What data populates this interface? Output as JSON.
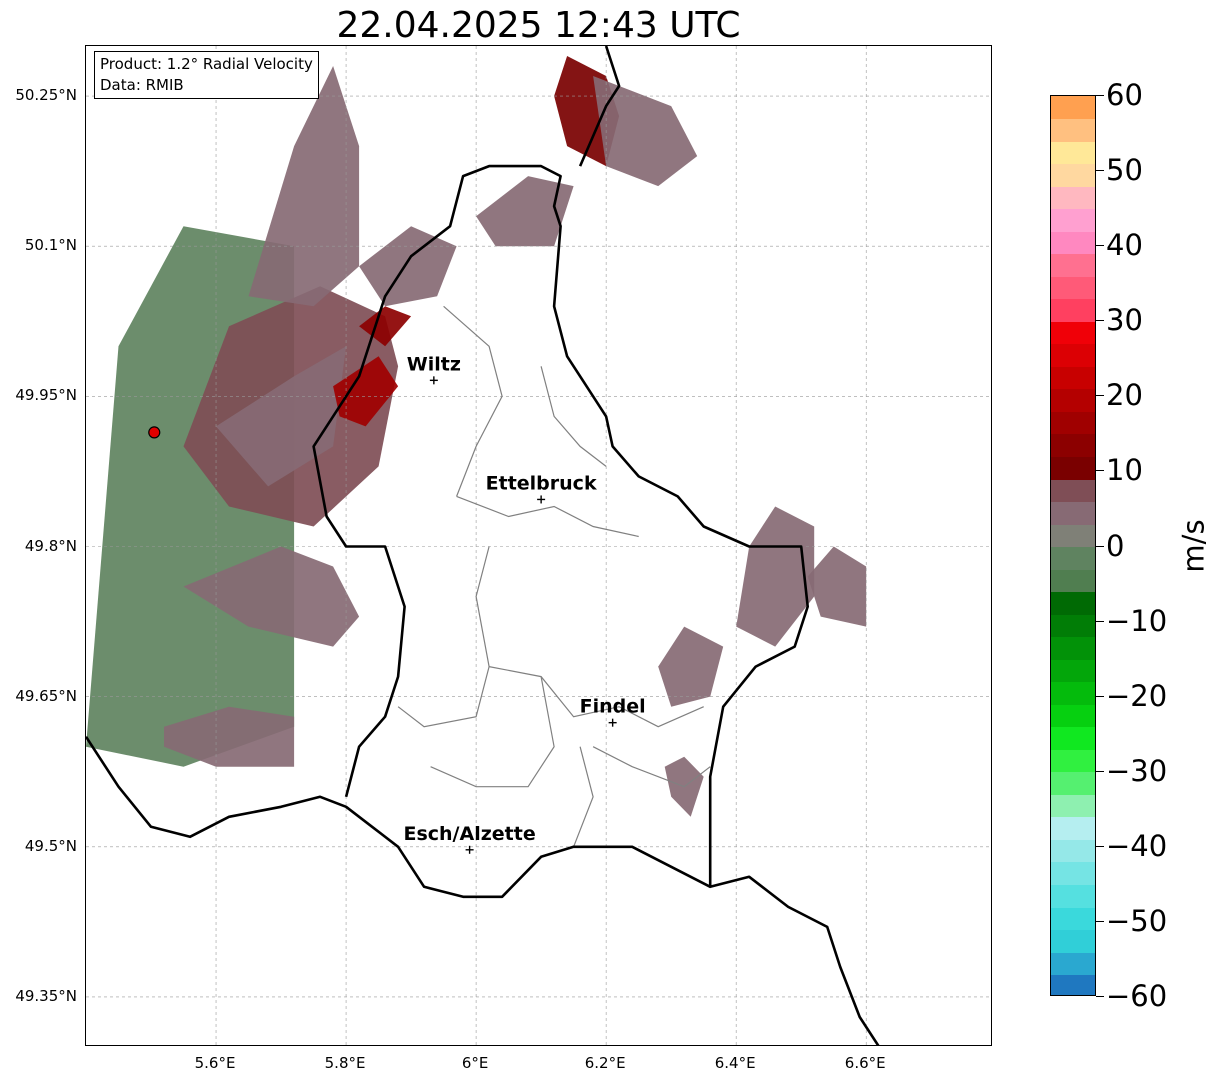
{
  "title": "22.04.2025 12:43 UTC",
  "info": {
    "product": "Product: 1.2° Radial Velocity",
    "data": "Data: RMIB"
  },
  "lat_labels": [
    "50.25°N",
    "50.1°N",
    "49.95°N",
    "49.8°N",
    "49.65°N",
    "49.5°N",
    "49.35°N"
  ],
  "lon_labels": [
    "5.6°E",
    "5.8°E",
    "6°E",
    "6.2°E",
    "6.4°E",
    "6.6°E"
  ],
  "lat_values": [
    50.25,
    50.1,
    49.95,
    49.8,
    49.65,
    49.5,
    49.35
  ],
  "lon_values": [
    5.6,
    5.8,
    6.0,
    6.2,
    6.4,
    6.6
  ],
  "extent": {
    "lon_min": 5.4,
    "lon_max": 6.795,
    "lat_min": 49.3,
    "lat_max": 50.3
  },
  "cities": [
    {
      "name": "Wiltz",
      "lon": 5.935,
      "lat": 49.966
    },
    {
      "name": "Ettelbruck",
      "lon": 6.1,
      "lat": 49.847
    },
    {
      "name": "Findel",
      "lon": 6.21,
      "lat": 49.624
    },
    {
      "name": "Esch/Alzette",
      "lon": 5.99,
      "lat": 49.497
    }
  ],
  "radar_site": {
    "lon": 5.505,
    "lat": 49.914
  },
  "colorbar": {
    "unit": "m/s",
    "min": -60,
    "max": 60,
    "ticks": [
      "60",
      "50",
      "40",
      "30",
      "20",
      "10",
      "0",
      "−10",
      "−20",
      "−30",
      "−40",
      "−50",
      "−60"
    ],
    "tick_values": [
      60,
      50,
      40,
      30,
      20,
      10,
      0,
      -10,
      -20,
      -30,
      -40,
      -50,
      -60
    ],
    "stops": [
      {
        "from": -60,
        "to": -57,
        "color": "#1f78c0"
      },
      {
        "from": -57,
        "to": -54,
        "color": "#2aa8d0"
      },
      {
        "from": -54,
        "to": -51,
        "color": "#30cfd8"
      },
      {
        "from": -51,
        "to": -48,
        "color": "#3ad9dc"
      },
      {
        "from": -48,
        "to": -45,
        "color": "#55e0e0"
      },
      {
        "from": -45,
        "to": -42,
        "color": "#75e4e4"
      },
      {
        "from": -42,
        "to": -39,
        "color": "#95e8e8"
      },
      {
        "from": -39,
        "to": -36,
        "color": "#b5eef0"
      },
      {
        "from": -36,
        "to": -33,
        "color": "#8ef0b0"
      },
      {
        "from": -33,
        "to": -30,
        "color": "#55f070"
      },
      {
        "from": -30,
        "to": -27,
        "color": "#30f040"
      },
      {
        "from": -27,
        "to": -24,
        "color": "#10e820"
      },
      {
        "from": -24,
        "to": -21,
        "color": "#06d010"
      },
      {
        "from": -21,
        "to": -18,
        "color": "#04bb0c"
      },
      {
        "from": -18,
        "to": -15,
        "color": "#03a60a"
      },
      {
        "from": -15,
        "to": -12,
        "color": "#029208"
      },
      {
        "from": -12,
        "to": -9,
        "color": "#017d06"
      },
      {
        "from": -9,
        "to": -6,
        "color": "#006a04"
      },
      {
        "from": -6,
        "to": -3,
        "color": "#507e50"
      },
      {
        "from": -3,
        "to": 0,
        "color": "#5f8360"
      },
      {
        "from": 0,
        "to": 3,
        "color": "#7f8077"
      },
      {
        "from": 3,
        "to": 6,
        "color": "#876a74"
      },
      {
        "from": 6,
        "to": 9,
        "color": "#7f4e56"
      },
      {
        "from": 9,
        "to": 12,
        "color": "#7a0000"
      },
      {
        "from": 12,
        "to": 15,
        "color": "#8c0000"
      },
      {
        "from": 15,
        "to": 18,
        "color": "#a00000"
      },
      {
        "from": 18,
        "to": 21,
        "color": "#b40000"
      },
      {
        "from": 21,
        "to": 24,
        "color": "#c80000"
      },
      {
        "from": 24,
        "to": 27,
        "color": "#dc0004"
      },
      {
        "from": 27,
        "to": 30,
        "color": "#f00008"
      },
      {
        "from": 30,
        "to": 33,
        "color": "#ff4060"
      },
      {
        "from": 33,
        "to": 36,
        "color": "#ff5a78"
      },
      {
        "from": 36,
        "to": 39,
        "color": "#ff7090"
      },
      {
        "from": 39,
        "to": 42,
        "color": "#ff88c0"
      },
      {
        "from": 42,
        "to": 45,
        "color": "#ffa0d0"
      },
      {
        "from": 45,
        "to": 48,
        "color": "#ffb8c0"
      },
      {
        "from": 48,
        "to": 51,
        "color": "#ffd8a0"
      },
      {
        "from": 51,
        "to": 54,
        "color": "#ffe898"
      },
      {
        "from": 54,
        "to": 57,
        "color": "#ffc080"
      },
      {
        "from": 57,
        "to": 60,
        "color": "#ffa050"
      }
    ]
  },
  "echo_regions": [
    {
      "poly": [
        [
          5.4,
          49.6
        ],
        [
          5.45,
          50.0
        ],
        [
          5.55,
          50.12
        ],
        [
          5.72,
          50.1
        ],
        [
          5.72,
          49.62
        ],
        [
          5.55,
          49.58
        ]
      ],
      "color": "#5f8360"
    },
    {
      "poly": [
        [
          5.55,
          49.9
        ],
        [
          5.62,
          50.02
        ],
        [
          5.76,
          50.06
        ],
        [
          5.86,
          50.03
        ],
        [
          5.88,
          49.98
        ],
        [
          5.85,
          49.88
        ],
        [
          5.75,
          49.82
        ],
        [
          5.62,
          49.84
        ]
      ],
      "color": "#7f4e56"
    },
    {
      "poly": [
        [
          5.6,
          49.92
        ],
        [
          5.72,
          49.97
        ],
        [
          5.8,
          50.0
        ],
        [
          5.78,
          49.9
        ],
        [
          5.68,
          49.86
        ]
      ],
      "color": "#876a74"
    },
    {
      "poly": [
        [
          5.78,
          49.96
        ],
        [
          5.85,
          49.99
        ],
        [
          5.88,
          49.96
        ],
        [
          5.83,
          49.92
        ],
        [
          5.79,
          49.93
        ]
      ],
      "color": "#a00000"
    },
    {
      "poly": [
        [
          5.82,
          50.02
        ],
        [
          5.86,
          50.04
        ],
        [
          5.9,
          50.03
        ],
        [
          5.86,
          50.0
        ]
      ],
      "color": "#8c0000"
    },
    {
      "poly": [
        [
          5.7,
          49.8
        ],
        [
          5.78,
          49.78
        ],
        [
          5.82,
          49.73
        ],
        [
          5.78,
          49.7
        ],
        [
          5.65,
          49.72
        ],
        [
          5.55,
          49.76
        ]
      ],
      "color": "#876a74"
    },
    {
      "poly": [
        [
          5.52,
          49.62
        ],
        [
          5.62,
          49.64
        ],
        [
          5.72,
          49.63
        ],
        [
          5.72,
          49.58
        ],
        [
          5.6,
          49.58
        ],
        [
          5.52,
          49.6
        ]
      ],
      "color": "#876a74"
    },
    {
      "poly": [
        [
          5.65,
          50.05
        ],
        [
          5.72,
          50.2
        ],
        [
          5.78,
          50.28
        ],
        [
          5.82,
          50.2
        ],
        [
          5.82,
          50.08
        ],
        [
          5.75,
          50.04
        ]
      ],
      "color": "#876a74"
    },
    {
      "poly": [
        [
          6.12,
          50.25
        ],
        [
          6.14,
          50.29
        ],
        [
          6.2,
          50.27
        ],
        [
          6.22,
          50.23
        ],
        [
          6.2,
          50.18
        ],
        [
          6.14,
          50.2
        ]
      ],
      "color": "#7a0000"
    },
    {
      "poly": [
        [
          6.18,
          50.27
        ],
        [
          6.3,
          50.24
        ],
        [
          6.34,
          50.19
        ],
        [
          6.28,
          50.16
        ],
        [
          6.2,
          50.18
        ]
      ],
      "color": "#876a74"
    },
    {
      "poly": [
        [
          6.0,
          50.13
        ],
        [
          6.08,
          50.17
        ],
        [
          6.15,
          50.16
        ],
        [
          6.12,
          50.1
        ],
        [
          6.03,
          50.1
        ]
      ],
      "color": "#876a74"
    },
    {
      "poly": [
        [
          5.82,
          50.08
        ],
        [
          5.9,
          50.12
        ],
        [
          5.97,
          50.1
        ],
        [
          5.94,
          50.05
        ],
        [
          5.86,
          50.04
        ]
      ],
      "color": "#876a74"
    },
    {
      "poly": [
        [
          6.42,
          49.8
        ],
        [
          6.46,
          49.84
        ],
        [
          6.52,
          49.82
        ],
        [
          6.52,
          49.75
        ],
        [
          6.46,
          49.7
        ],
        [
          6.4,
          49.72
        ]
      ],
      "color": "#876a74"
    },
    {
      "poly": [
        [
          6.28,
          49.68
        ],
        [
          6.32,
          49.72
        ],
        [
          6.38,
          49.7
        ],
        [
          6.36,
          49.65
        ],
        [
          6.3,
          49.64
        ]
      ],
      "color": "#876a74"
    },
    {
      "poly": [
        [
          6.51,
          49.77
        ],
        [
          6.55,
          49.8
        ],
        [
          6.6,
          49.78
        ],
        [
          6.6,
          49.72
        ],
        [
          6.53,
          49.73
        ]
      ],
      "color": "#876a74"
    },
    {
      "poly": [
        [
          6.29,
          49.58
        ],
        [
          6.32,
          49.59
        ],
        [
          6.35,
          49.57
        ],
        [
          6.33,
          49.53
        ],
        [
          6.3,
          49.55
        ]
      ],
      "color": "#876a74"
    }
  ],
  "border_black": [
    [
      [
        5.4,
        49.61
      ],
      [
        5.45,
        49.56
      ],
      [
        5.5,
        49.52
      ],
      [
        5.56,
        49.51
      ],
      [
        5.62,
        49.53
      ],
      [
        5.7,
        49.54
      ],
      [
        5.76,
        49.55
      ],
      [
        5.8,
        49.54
      ],
      [
        5.84,
        49.52
      ],
      [
        5.88,
        49.5
      ],
      [
        5.92,
        49.46
      ],
      [
        5.98,
        49.45
      ],
      [
        6.04,
        49.45
      ],
      [
        6.1,
        49.49
      ],
      [
        6.15,
        49.5
      ],
      [
        6.24,
        49.5
      ],
      [
        6.3,
        49.48
      ],
      [
        6.36,
        49.46
      ],
      [
        6.42,
        49.47
      ],
      [
        6.48,
        49.44
      ],
      [
        6.54,
        49.42
      ],
      [
        6.56,
        49.38
      ],
      [
        6.59,
        49.33
      ],
      [
        6.62,
        49.3
      ]
    ],
    [
      [
        5.8,
        49.55
      ],
      [
        5.82,
        49.6
      ],
      [
        5.86,
        49.63
      ],
      [
        5.88,
        49.67
      ],
      [
        5.89,
        49.74
      ],
      [
        5.86,
        49.8
      ],
      [
        5.8,
        49.8
      ],
      [
        5.77,
        49.83
      ],
      [
        5.75,
        49.9
      ],
      [
        5.82,
        49.97
      ],
      [
        5.86,
        50.05
      ],
      [
        5.9,
        50.09
      ],
      [
        5.96,
        50.12
      ],
      [
        5.98,
        50.17
      ],
      [
        6.02,
        50.18
      ],
      [
        6.1,
        50.18
      ],
      [
        6.13,
        50.17
      ],
      [
        6.12,
        50.14
      ],
      [
        6.13,
        50.12
      ],
      [
        6.12,
        50.04
      ],
      [
        6.14,
        49.99
      ],
      [
        6.17,
        49.96
      ],
      [
        6.2,
        49.93
      ],
      [
        6.21,
        49.9
      ],
      [
        6.25,
        49.87
      ],
      [
        6.31,
        49.85
      ],
      [
        6.35,
        49.82
      ],
      [
        6.42,
        49.8
      ],
      [
        6.5,
        49.8
      ],
      [
        6.51,
        49.74
      ],
      [
        6.49,
        49.7
      ],
      [
        6.43,
        49.68
      ],
      [
        6.38,
        49.64
      ],
      [
        6.36,
        49.57
      ],
      [
        6.36,
        49.46
      ]
    ],
    [
      [
        6.2,
        50.3
      ],
      [
        6.22,
        50.26
      ],
      [
        6.2,
        50.24
      ],
      [
        6.18,
        50.21
      ],
      [
        6.16,
        50.18
      ]
    ]
  ],
  "border_gray": [
    [
      [
        5.95,
        50.04
      ],
      [
        6.02,
        50.0
      ],
      [
        6.04,
        49.95
      ],
      [
        6.0,
        49.9
      ],
      [
        5.97,
        49.85
      ]
    ],
    [
      [
        6.1,
        49.98
      ],
      [
        6.12,
        49.93
      ],
      [
        6.16,
        49.9
      ],
      [
        6.2,
        49.88
      ]
    ],
    [
      [
        5.97,
        49.85
      ],
      [
        6.05,
        49.83
      ],
      [
        6.12,
        49.84
      ],
      [
        6.18,
        49.82
      ],
      [
        6.25,
        49.81
      ]
    ],
    [
      [
        6.02,
        49.8
      ],
      [
        6.0,
        49.75
      ],
      [
        6.02,
        49.68
      ],
      [
        6.0,
        49.63
      ],
      [
        5.92,
        49.62
      ],
      [
        5.88,
        49.64
      ]
    ],
    [
      [
        6.02,
        49.68
      ],
      [
        6.1,
        49.67
      ],
      [
        6.15,
        49.63
      ],
      [
        6.22,
        49.64
      ],
      [
        6.28,
        49.62
      ],
      [
        6.35,
        49.64
      ]
    ],
    [
      [
        6.1,
        49.67
      ],
      [
        6.12,
        49.6
      ],
      [
        6.08,
        49.56
      ],
      [
        6.0,
        49.56
      ],
      [
        5.93,
        49.58
      ]
    ],
    [
      [
        6.18,
        49.6
      ],
      [
        6.24,
        49.58
      ],
      [
        6.32,
        49.56
      ],
      [
        6.36,
        49.58
      ]
    ],
    [
      [
        6.16,
        49.6
      ],
      [
        6.18,
        49.55
      ],
      [
        6.15,
        49.5
      ]
    ]
  ]
}
